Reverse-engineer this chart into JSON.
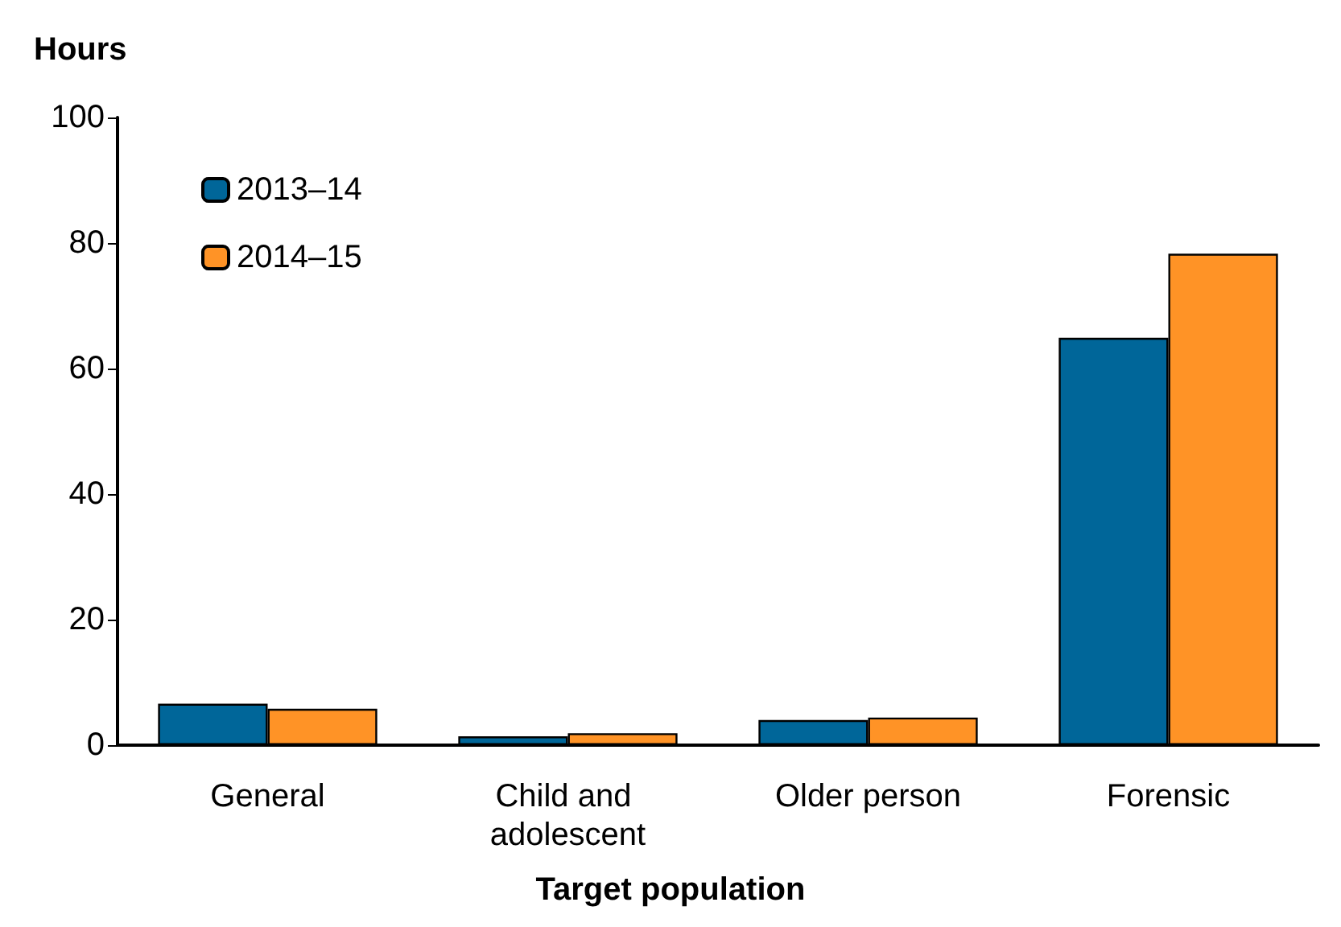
{
  "chart_data": {
    "type": "bar",
    "ylabel": "Hours",
    "xlabel": "Target population",
    "categories": [
      "General",
      "Child and adolescent",
      "Older person",
      "Forensic"
    ],
    "series": [
      {
        "name": "2013–14",
        "color": "#006699",
        "values": [
          6.6,
          1.4,
          4.0,
          64.9
        ]
      },
      {
        "name": "2014–15",
        "color": "#ff9326",
        "values": [
          5.8,
          1.9,
          4.4,
          78.3
        ]
      }
    ],
    "ylim": [
      0,
      100
    ],
    "yticks": [
      0,
      20,
      40,
      60,
      80,
      100
    ],
    "grid": false,
    "legend": "top left"
  }
}
